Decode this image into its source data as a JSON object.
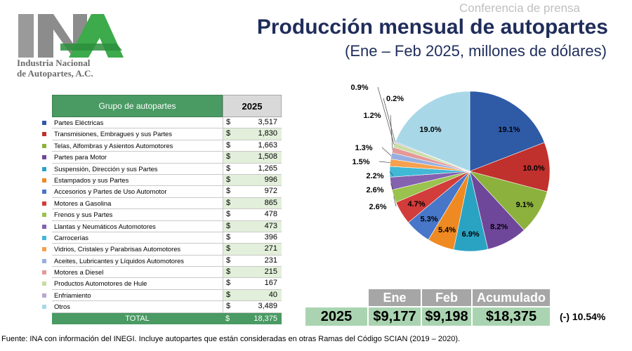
{
  "header": {
    "kicker": "Conferencia de prensa",
    "title": "Producción mensual de autopartes",
    "subtitle": "(Ene – Feb 2025, millones de dólares)"
  },
  "logo": {
    "letters": "INA",
    "line1": "Industria Nacional",
    "line2": "de Autopartes, A.C."
  },
  "table": {
    "col_group": "Grupo de autopartes",
    "col_year": "2025",
    "currency": "$",
    "rows": [
      {
        "name": "Partes Eléctricas",
        "value": "3,517"
      },
      {
        "name": "Transmisiones, Embragues y sus Partes",
        "value": "1,830"
      },
      {
        "name": "Telas, Alfombras y Asientos Automotores",
        "value": "1,663"
      },
      {
        "name": "Partes para Motor",
        "value": "1,508"
      },
      {
        "name": "Suspensión, Dirección y sus Partes",
        "value": "1,265"
      },
      {
        "name": "Estampados y sus Partes",
        "value": "996"
      },
      {
        "name": "Accesorios y Partes de Uso Automotor",
        "value": "972"
      },
      {
        "name": "Motores a Gasolina",
        "value": "865"
      },
      {
        "name": "Frenos y sus Partes",
        "value": "478"
      },
      {
        "name": "Llantas y Neumáticos Automotores",
        "value": "473"
      },
      {
        "name": "Carrocerías",
        "value": "396"
      },
      {
        "name": "Vidrios, Cristales y Parabrisas Automotores",
        "value": "271"
      },
      {
        "name": "Aceites, Lubricantes y Líquidos Automotores",
        "value": "231"
      },
      {
        "name": "Motores a Diesel",
        "value": "215"
      },
      {
        "name": "Productos Automotores de Hule",
        "value": "167"
      },
      {
        "name": "Enfriamiento",
        "value": "40"
      },
      {
        "name": "Otros",
        "value": "3,489"
      }
    ],
    "total_label": "TOTAL",
    "total_value": "18,375"
  },
  "summary": {
    "headers": [
      "Ene",
      "Feb",
      "Acumulado"
    ],
    "row_label": "2025",
    "values": [
      "$9,177",
      "$9,198",
      "$18,375"
    ],
    "change": "(-) 10.54%"
  },
  "source": "Fuente: INA con información del INEGI. Incluye autopartes que están consideradas en otras Ramas del Código SCIAN (2019 – 2020).",
  "chart_data": {
    "type": "pie",
    "title": "",
    "slices": [
      {
        "label": "19.1%",
        "value": 3517,
        "color": "#2e5aa6"
      },
      {
        "label": "10.0%",
        "value": 1830,
        "color": "#c0302d"
      },
      {
        "label": "9.1%",
        "value": 1663,
        "color": "#8cb13d"
      },
      {
        "label": "8.2%",
        "value": 1508,
        "color": "#6f479a"
      },
      {
        "label": "6.9%",
        "value": 1265,
        "color": "#2aa3c3"
      },
      {
        "label": "5.4%",
        "value": 996,
        "color": "#ef8a22"
      },
      {
        "label": "5.3%",
        "value": 972,
        "color": "#4876c8"
      },
      {
        "label": "4.7%",
        "value": 865,
        "color": "#d23c3a"
      },
      {
        "label": "2.6%",
        "value": 478,
        "color": "#9ac24e"
      },
      {
        "label": "2.6%",
        "value": 473,
        "color": "#8462b0"
      },
      {
        "label": "2.2%",
        "value": 396,
        "color": "#41b8d6"
      },
      {
        "label": "1.5%",
        "value": 271,
        "color": "#f5a14f"
      },
      {
        "label": "1.3%",
        "value": 231,
        "color": "#97aee0"
      },
      {
        "label": "1.2%",
        "value": 215,
        "color": "#e49a98"
      },
      {
        "label": "0.9%",
        "value": 167,
        "color": "#c9dca3"
      },
      {
        "label": "0.2%",
        "value": 40,
        "color": "#b9a6d2"
      },
      {
        "label": "19.0%",
        "value": 3489,
        "color": "#a8d8e8"
      }
    ]
  }
}
